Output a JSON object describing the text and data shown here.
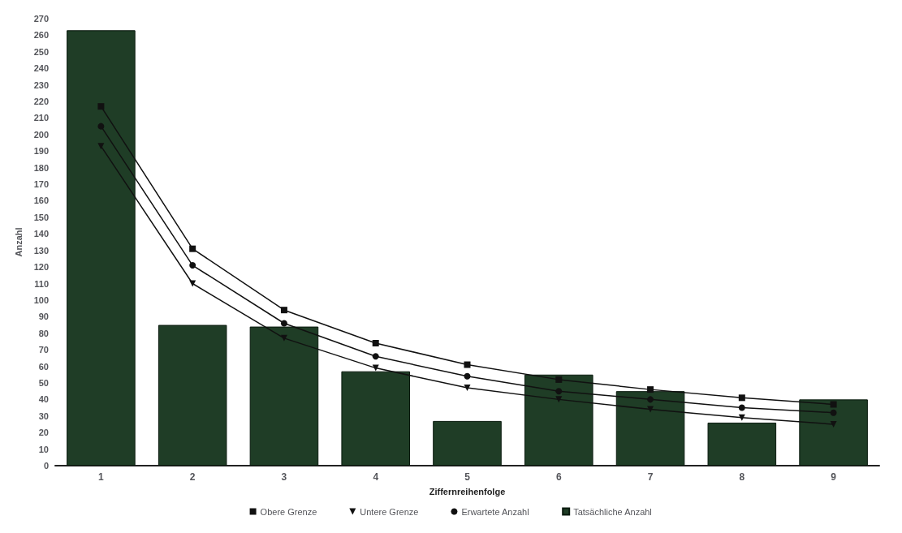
{
  "chart_data": {
    "type": "bar",
    "xlabel": "Ziffernreihenfolge",
    "ylabel": "Anzahl",
    "categories": [
      "1",
      "2",
      "3",
      "4",
      "5",
      "6",
      "7",
      "8",
      "9"
    ],
    "series": [
      {
        "name": "Obere Grenze",
        "type": "line",
        "color": "#111111",
        "marker": "square",
        "values": [
          217,
          131,
          94,
          74,
          61,
          52,
          46,
          41,
          37
        ]
      },
      {
        "name": "Untere Grenze",
        "type": "line",
        "color": "#111111",
        "marker": "triangle",
        "values": [
          193,
          110,
          77,
          59,
          47,
          40,
          34,
          29,
          25
        ]
      },
      {
        "name": "Erwartete Anzahl",
        "type": "line",
        "color": "#111111",
        "marker": "circle",
        "values": [
          205,
          121,
          86,
          66,
          54,
          45,
          40,
          35,
          32
        ]
      },
      {
        "name": "Tatsächliche Anzahl",
        "color": "#1f3d26",
        "values": [
          263,
          85,
          84,
          57,
          27,
          55,
          45,
          26,
          40
        ]
      }
    ],
    "ylim": [
      0,
      270
    ],
    "yticks": [
      0,
      10,
      20,
      30,
      40,
      50,
      60,
      70,
      80,
      90,
      100,
      110,
      120,
      130,
      140,
      150,
      160,
      170,
      180,
      190,
      200,
      210,
      220,
      230,
      240,
      250,
      260,
      270
    ],
    "grid": false,
    "legend": "bottom",
    "line_style": "solid"
  }
}
